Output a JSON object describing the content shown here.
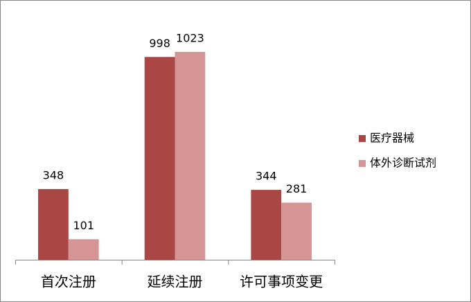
{
  "chart_data": {
    "type": "bar",
    "categories": [
      "首次注册",
      "延续注册",
      "许可事项变更"
    ],
    "series": [
      {
        "name": "医疗器械",
        "color": "#aa4644",
        "values": [
          348,
          998,
          344
        ]
      },
      {
        "name": "体外诊断试剂",
        "color": "#d59594",
        "values": [
          101,
          1023,
          281
        ]
      }
    ],
    "ylim": [
      0,
      1200
    ],
    "legend": "right"
  }
}
